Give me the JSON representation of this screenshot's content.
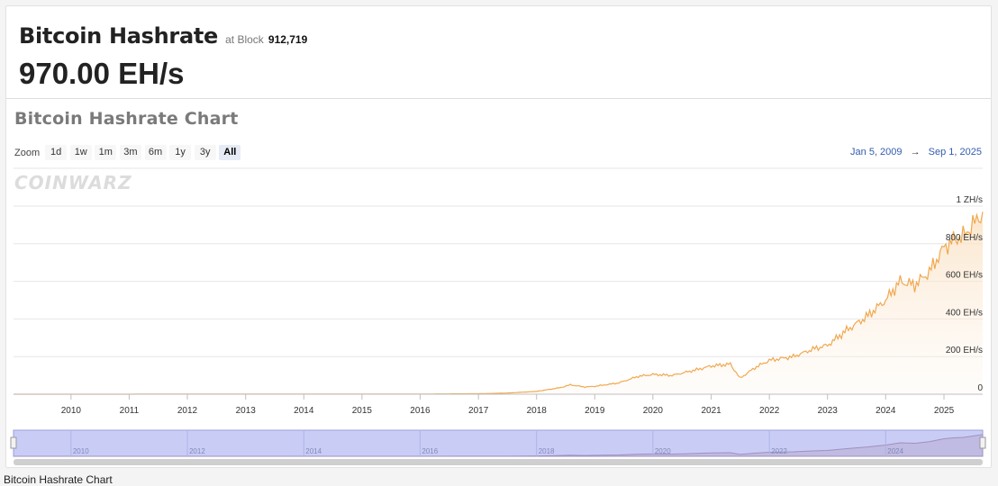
{
  "header": {
    "title": "Bitcoin Hashrate",
    "at_block_label": "at Block",
    "block_number": "912,719",
    "current_value": "970.00 EH/s"
  },
  "chart_header": {
    "title": "Bitcoin Hashrate Chart",
    "zoom_label": "Zoom",
    "zoom_buttons": [
      "1d",
      "1w",
      "1m",
      "3m",
      "6m",
      "1y",
      "3y",
      "All"
    ],
    "zoom_active": "All",
    "range_from": "Jan 5, 2009",
    "range_arrow": "→",
    "range_to": "Sep 1, 2025",
    "watermark": "COINWARZ"
  },
  "footer_text": "Bitcoin Hashrate Chart",
  "colors": {
    "line": "#f0a850",
    "area_top": "#fbe3c6",
    "navigator_fill": "#c9cdf6",
    "navigator_border": "#9aa0d8",
    "grid": "#e6e6e6"
  },
  "chart_data": {
    "type": "area",
    "title": "Bitcoin Hashrate Chart",
    "x_axis": {
      "type": "date",
      "min": "2009-01-05",
      "max": "2025-09-01",
      "tick_labels": [
        "2010",
        "2011",
        "2012",
        "2013",
        "2014",
        "2015",
        "2016",
        "2017",
        "2018",
        "2019",
        "2020",
        "2021",
        "2022",
        "2023",
        "2024",
        "2025"
      ]
    },
    "y_axis": {
      "min": 0,
      "max": 1000,
      "unit": "EH/s",
      "tick_values": [
        0,
        200,
        400,
        600,
        800,
        1000
      ],
      "tick_labels": [
        "0",
        "200 EH/s",
        "400 EH/s",
        "600 EH/s",
        "800 EH/s",
        "1 ZH/s"
      ],
      "position": "right"
    },
    "grid": true,
    "series": [
      {
        "x": [
          "2009-01-05",
          "2016-01-01",
          "2017-01-01",
          "2017-07-01",
          "2018-01-01",
          "2018-06-01",
          "2018-08-01",
          "2018-11-01",
          "2019-01-01",
          "2019-06-01",
          "2019-10-01",
          "2020-01-01",
          "2020-05-01",
          "2020-10-01",
          "2021-01-01",
          "2021-05-01",
          "2021-07-01",
          "2021-10-01",
          "2022-01-01",
          "2022-06-01",
          "2022-10-01",
          "2023-01-01",
          "2023-05-01",
          "2023-09-01",
          "2024-01-01",
          "2024-04-01",
          "2024-07-01",
          "2024-10-01",
          "2025-01-01",
          "2025-03-01",
          "2025-05-01",
          "2025-07-01",
          "2025-09-01"
        ],
        "values": [
          0,
          0.8,
          2.5,
          6,
          15,
          35,
          50,
          38,
          42,
          60,
          95,
          105,
          100,
          130,
          150,
          160,
          85,
          140,
          180,
          200,
          240,
          260,
          340,
          410,
          500,
          600,
          580,
          650,
          780,
          820,
          840,
          900,
          970
        ]
      }
    ],
    "navigator": {
      "tick_labels": [
        "2010",
        "2012",
        "2014",
        "2016",
        "2018",
        "2020",
        "2022",
        "2024"
      ]
    }
  }
}
